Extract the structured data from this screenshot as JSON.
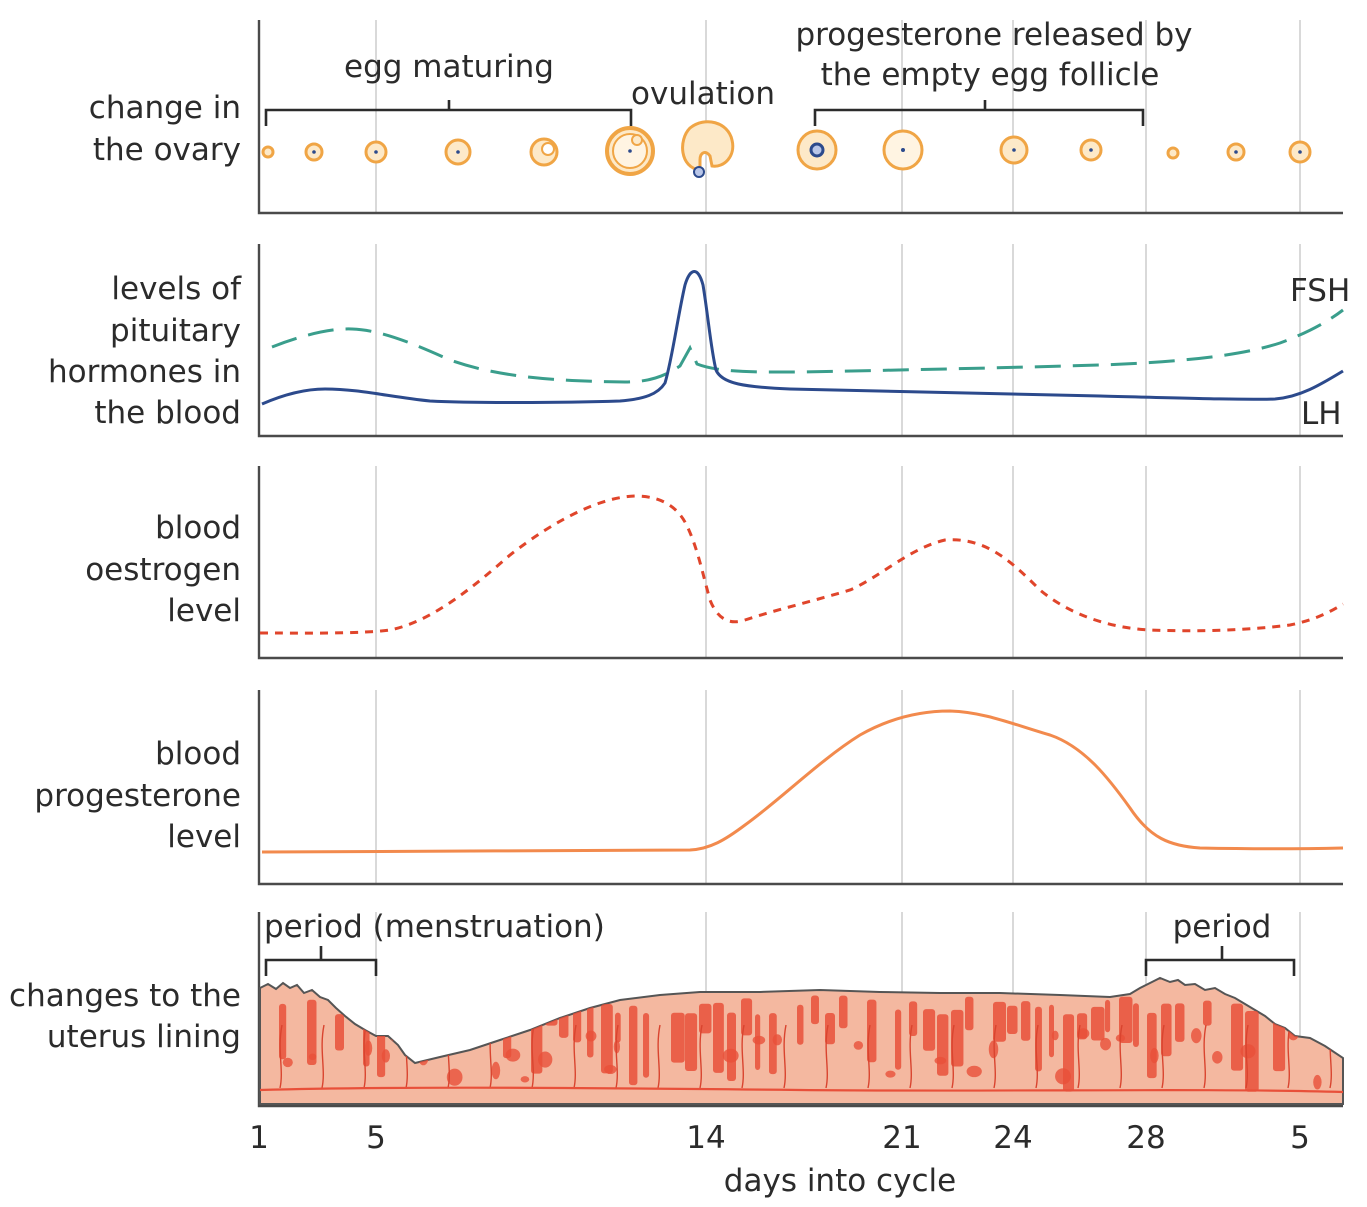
{
  "rows": {
    "ovary": [
      "change in",
      "the ovary"
    ],
    "pituitary": [
      "levels of",
      "pituitary",
      "hormones in",
      "the blood"
    ],
    "oestrogen": [
      "blood",
      "oestrogen",
      "level"
    ],
    "progesterone": [
      "blood",
      "progesterone",
      "level"
    ],
    "uterus": [
      "changes to the",
      "uterus lining"
    ]
  },
  "annotations": {
    "egg_maturing": "egg maturing",
    "ovulation": "ovulation",
    "progesterone_released": [
      "progesterone released by",
      "the empty egg follicle"
    ],
    "period_menstruation": "period (menstruation)",
    "period": "period"
  },
  "series_labels": {
    "fsh": "FSH",
    "lh": "LH"
  },
  "x_axis": {
    "ticks": [
      "1",
      "5",
      "14",
      "21",
      "24",
      "28",
      "5"
    ],
    "label": "days into cycle"
  },
  "colors": {
    "fsh": "#3a9e8c",
    "lh": "#2c4a8c",
    "oestrogen": "#e0452b",
    "progesterone": "#f28a4d",
    "follicle": "#f0a545",
    "lining_light": "#f4b8a0",
    "lining_dark": "#e8503a"
  },
  "icons": {
    "follicle": "follicle-icon",
    "egg": "egg-icon"
  }
}
